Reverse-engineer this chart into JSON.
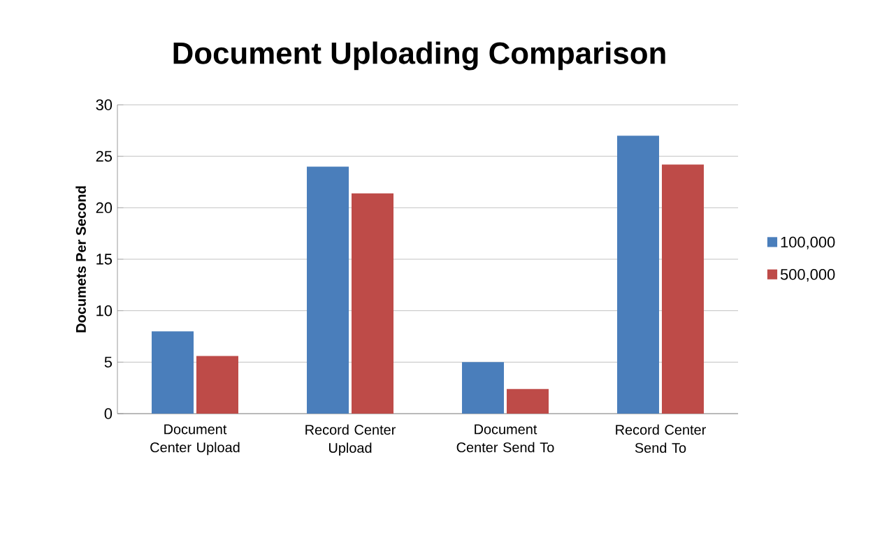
{
  "chart_data": {
    "type": "bar",
    "title": "Document Uploading Comparison",
    "ylabel": "Documets Per Second",
    "categories": [
      "Document Center Upload",
      "Record Center Upload",
      "Document Center Send To",
      "Record Center Send To"
    ],
    "series": [
      {
        "name": "100,000",
        "color": "#4a7ebb",
        "values": [
          8,
          24,
          5,
          27
        ]
      },
      {
        "name": "500,000",
        "color": "#be4b48",
        "values": [
          5.6,
          21.4,
          2.4,
          24.2
        ]
      }
    ],
    "ylim": [
      0,
      30
    ],
    "yticks": [
      0,
      5,
      10,
      15,
      20,
      25,
      30
    ],
    "grid": "y",
    "legend": "right"
  }
}
